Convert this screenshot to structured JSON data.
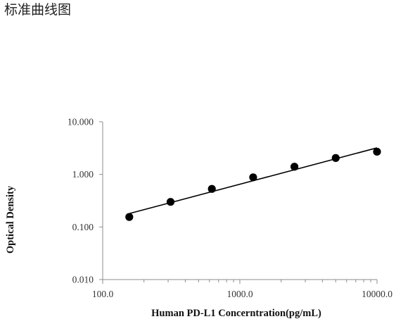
{
  "page": {
    "heading": "标准曲线图"
  },
  "chart_data": {
    "type": "scatter",
    "title": "",
    "xlabel": "Human PD-L1 Concerntration(pg/mL)",
    "ylabel": "Optical Density",
    "x_scale": "log",
    "y_scale": "log",
    "xlim": [
      100,
      10000
    ],
    "ylim": [
      0.01,
      10
    ],
    "x_ticks": [
      "100.0",
      "1000.0",
      "10000.0"
    ],
    "y_ticks": [
      "10.000",
      "1.000",
      "0.100",
      "0.010"
    ],
    "grid": false,
    "legend": "none",
    "series": [
      {
        "x": [
          156.25,
          312.5,
          625,
          1250,
          2500,
          5000,
          10000
        ],
        "y": [
          0.155,
          0.3,
          0.53,
          0.88,
          1.4,
          2.05,
          2.7
        ]
      }
    ],
    "trendline": {
      "x": [
        156.25,
        10000
      ],
      "y": [
        0.18,
        3.2
      ]
    },
    "colors": {
      "marker": "#000000",
      "line": "#000000",
      "axis": "#8c8c8c"
    }
  }
}
